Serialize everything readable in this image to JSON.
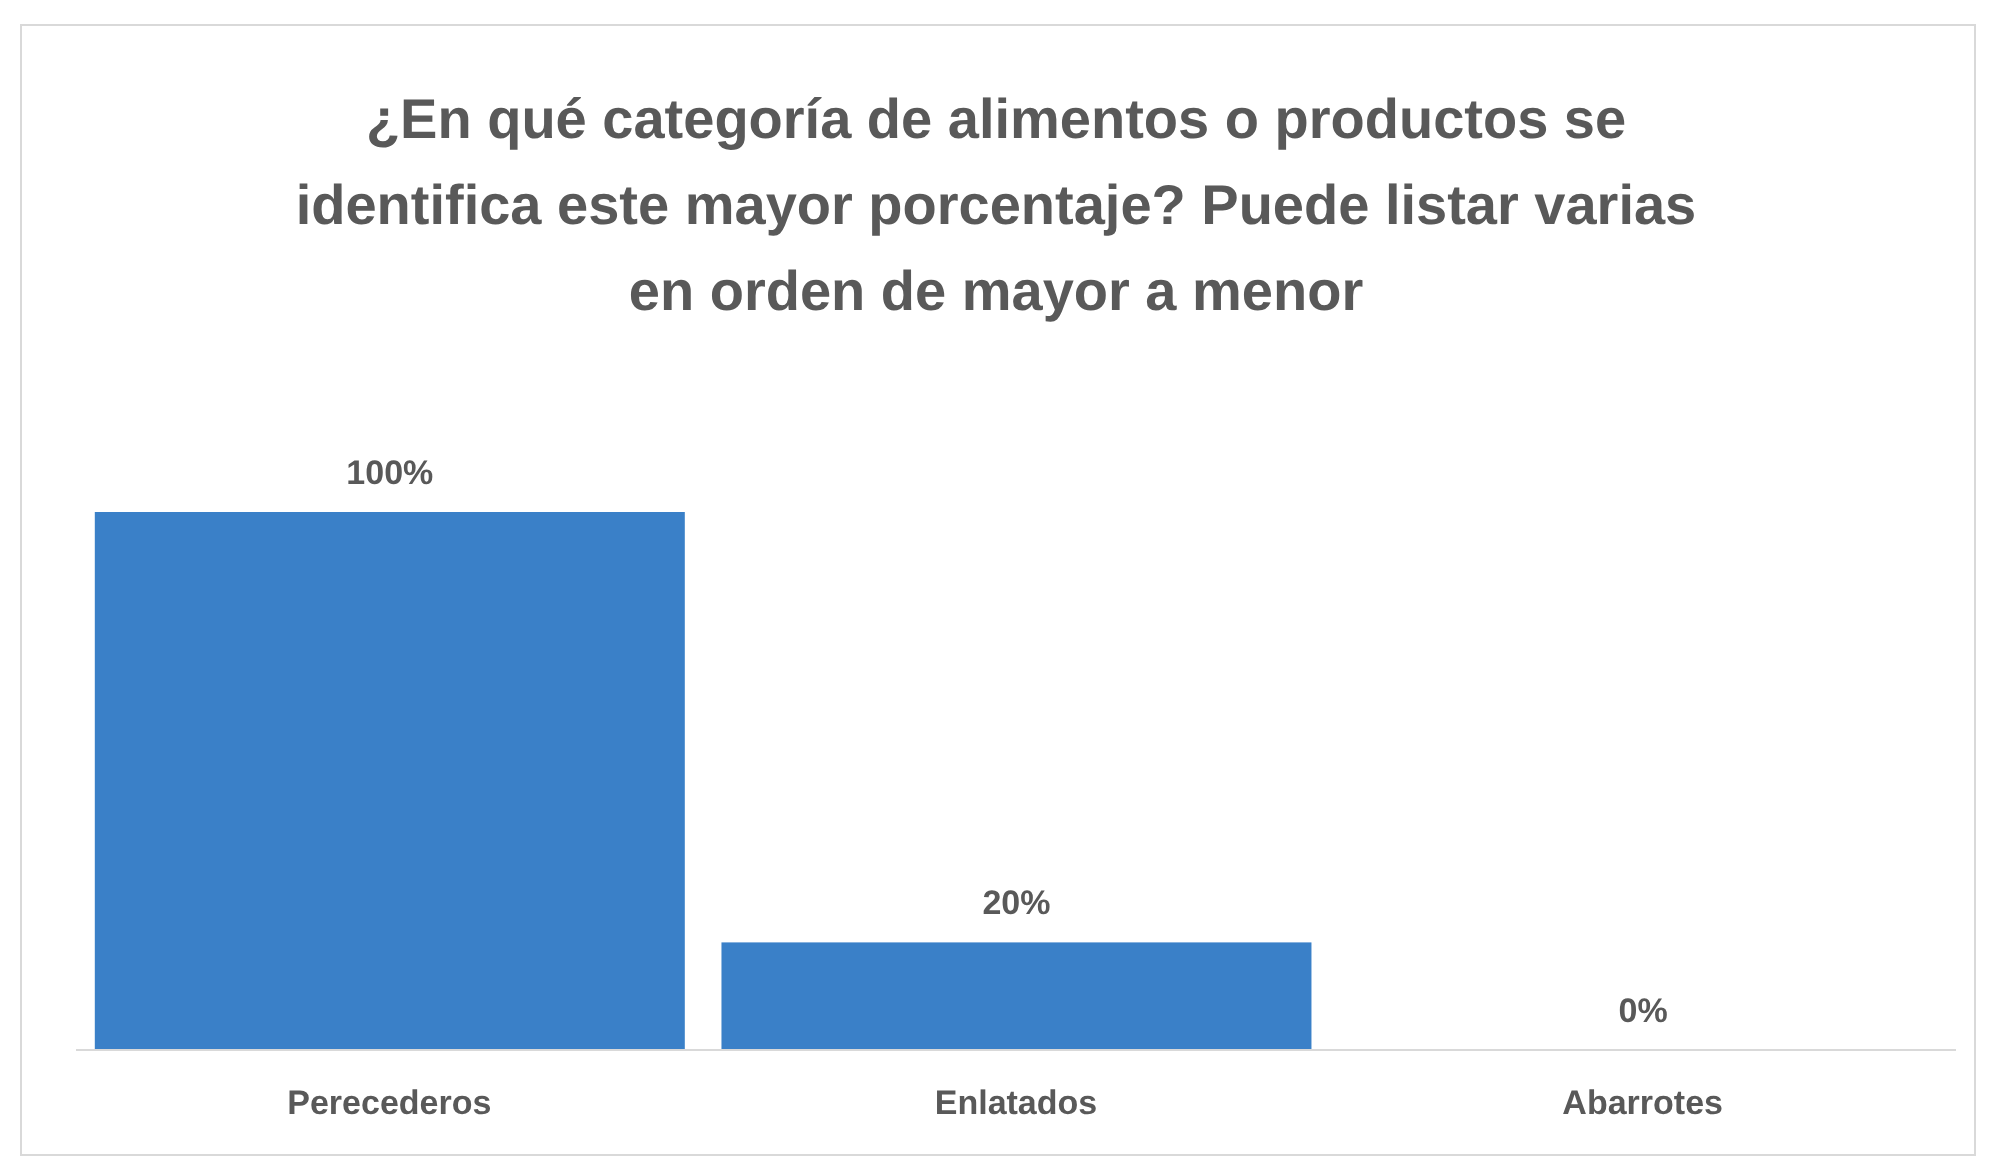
{
  "chart_data": {
    "type": "bar",
    "title": "¿En qué categoría de alimentos o productos se identifica este mayor porcentaje? Puede listar varias en orden de mayor a menor",
    "categories": [
      "Perecederos",
      "Enlatados",
      "Abarrotes"
    ],
    "values": [
      100,
      20,
      0
    ],
    "value_labels": [
      "100%",
      "20%",
      "0%"
    ],
    "color": "#3a80c8"
  }
}
